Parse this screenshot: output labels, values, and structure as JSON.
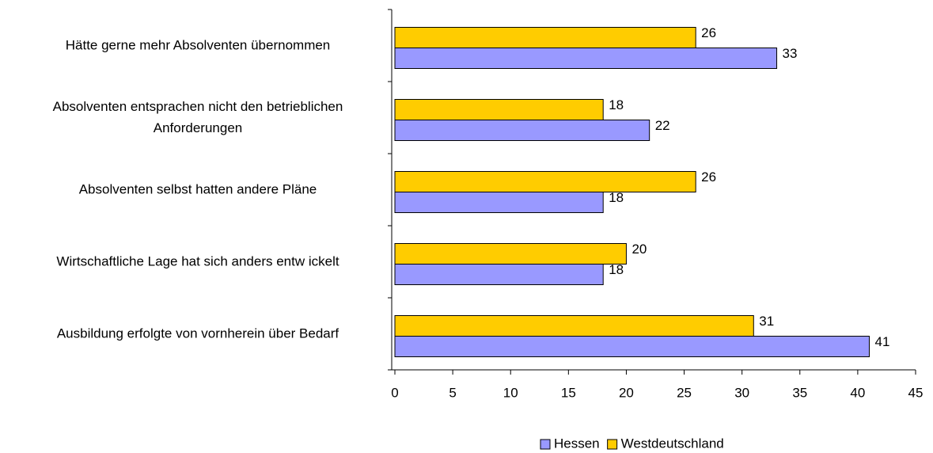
{
  "chart_data": {
    "type": "bar",
    "orientation": "horizontal",
    "categories": [
      "Hätte gerne mehr Absolventen übernommen",
      "Absolventen entsprachen nicht den betrieblichen Anforderungen",
      "Absolventen selbst hatten andere Pläne",
      "Wirtschaftliche Lage hat sich anders entw ickelt",
      "Ausbildung erfolgte von vornherein über Bedarf"
    ],
    "series": [
      {
        "name": "Hessen",
        "color": "#9999ff",
        "values": [
          33,
          22,
          18,
          18,
          41
        ]
      },
      {
        "name": "Westdeutschland",
        "color": "#ffcc00",
        "values": [
          26,
          18,
          26,
          20,
          31
        ]
      }
    ],
    "xlim": [
      0,
      45
    ],
    "xticks": [
      0,
      5,
      10,
      15,
      20,
      25,
      30,
      35,
      40,
      45
    ],
    "legend": "bottom"
  }
}
